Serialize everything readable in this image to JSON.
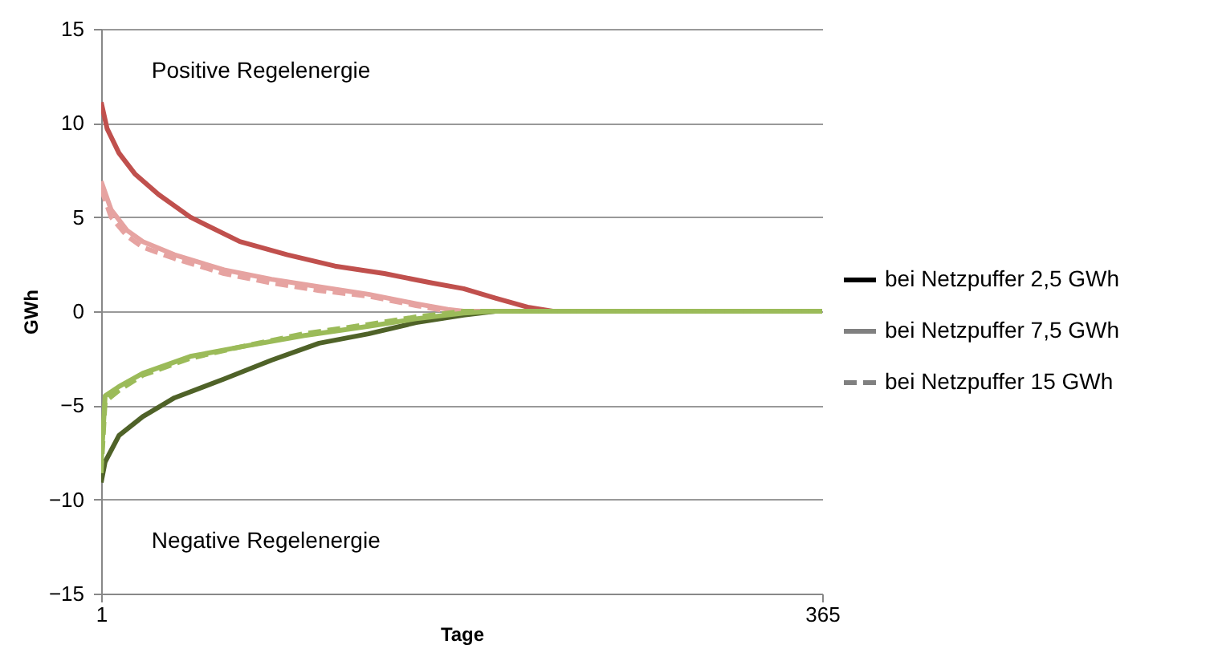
{
  "chart_data": {
    "type": "line",
    "xlabel": "Tage",
    "ylabel": "GWh",
    "xlim": [
      1,
      365
    ],
    "xticks": [
      1,
      365
    ],
    "ylim": [
      -15,
      15
    ],
    "yticks": [
      -15,
      -10,
      -5,
      0,
      5,
      10,
      15
    ],
    "grid": "y",
    "legend": "right",
    "annotations": [
      "Positive Regelenergie",
      "Negative Regelenergie"
    ],
    "series": [
      {
        "color": "#c0504d",
        "line_style": "solid",
        "x": [
          1,
          4,
          10,
          18,
          30,
          46,
          71,
          95,
          119,
          144,
          168,
          184,
          200,
          217,
          229,
          365
        ],
        "values": [
          11.1,
          9.7,
          8.4,
          7.3,
          6.2,
          5.0,
          3.7,
          3.0,
          2.4,
          2.0,
          1.5,
          1.2,
          0.7,
          0.2,
          0,
          0
        ]
      },
      {
        "color": "#e6a3a1",
        "line_style": "solid",
        "x": [
          1,
          6,
          14,
          22,
          38,
          63,
          87,
          111,
          136,
          160,
          176,
          184,
          365
        ],
        "values": [
          6.9,
          5.4,
          4.3,
          3.7,
          3.0,
          2.2,
          1.7,
          1.3,
          0.9,
          0.4,
          0.1,
          0,
          0
        ]
      },
      {
        "color": "#e6a3a1",
        "line_style": "dashed",
        "x": [
          1,
          6,
          14,
          22,
          38,
          63,
          87,
          111,
          136,
          160,
          176,
          184,
          365
        ],
        "values": [
          6.5,
          5.0,
          4.0,
          3.4,
          2.8,
          2.0,
          1.5,
          1.1,
          0.8,
          0.3,
          0,
          0,
          0
        ]
      },
      {
        "color": "#4f6228",
        "line_style": "solid",
        "x": [
          1,
          3,
          10,
          22,
          38,
          63,
          87,
          111,
          136,
          160,
          184,
          200,
          365
        ],
        "values": [
          -9.1,
          -8.0,
          -6.6,
          -5.6,
          -4.6,
          -3.6,
          -2.6,
          -1.7,
          -1.2,
          -0.6,
          -0.2,
          0,
          0
        ]
      },
      {
        "color": "#9bbb59",
        "line_style": "solid",
        "x": [
          1,
          3,
          10,
          22,
          46,
          71,
          103,
          136,
          160,
          184,
          200,
          365
        ],
        "values": [
          -8.1,
          -4.5,
          -4.0,
          -3.3,
          -2.4,
          -1.9,
          -1.3,
          -0.8,
          -0.4,
          -0.1,
          0,
          0
        ]
      },
      {
        "color": "#9bbb59",
        "line_style": "dashed",
        "x": [
          1,
          3,
          10,
          22,
          46,
          71,
          103,
          136,
          160,
          184,
          200,
          365
        ],
        "values": [
          -8.6,
          -4.8,
          -4.2,
          -3.4,
          -2.5,
          -1.9,
          -1.2,
          -0.7,
          -0.3,
          0,
          0,
          0
        ]
      },
      {
        "name": "bei Netzpuffer 2,5 GWh",
        "color": "#000000",
        "line_style": "solid",
        "values": [
          null
        ]
      },
      {
        "name": "bei Netzpuffer 7,5 GWh",
        "color": "#808080",
        "line_style": "solid",
        "values": [
          null
        ]
      },
      {
        "name": "bei Netzpuffer 15 GWh",
        "color": "#808080",
        "line_style": "dashed",
        "values": [
          null
        ]
      }
    ]
  }
}
